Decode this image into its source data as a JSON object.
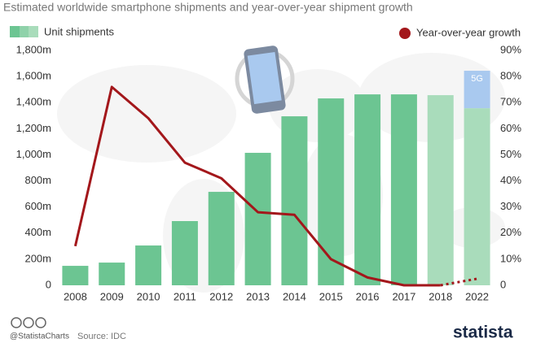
{
  "chart_data": {
    "type": "bar",
    "title": "Estimated worldwide smartphone shipments and year-over-year shipment growth",
    "categories": [
      "2008",
      "2009",
      "2010",
      "2011",
      "2012",
      "2013",
      "2014",
      "2015",
      "2016",
      "2017",
      "2018",
      "2022"
    ],
    "forecast": [
      false,
      false,
      false,
      false,
      false,
      false,
      false,
      false,
      false,
      false,
      true,
      true
    ],
    "series": [
      {
        "name": "Unit shipments",
        "color": "#6cc592",
        "forecast_color": "#a9dcbb",
        "values": [
          149,
          174,
          305,
          492,
          716,
          1015,
          1295,
          1432,
          1463,
          1463,
          1457,
          1357
        ]
      },
      {
        "name": "5G",
        "color": "#a9c9ef",
        "values": [
          null,
          null,
          null,
          null,
          null,
          null,
          null,
          null,
          null,
          null,
          null,
          287
        ]
      },
      {
        "name": "Year-over-year growth",
        "type": "line",
        "axis": "y2",
        "color": "#a3171b",
        "values": [
          15,
          76,
          64,
          47,
          41,
          28,
          27,
          10,
          3,
          0,
          0,
          2.5
        ]
      }
    ],
    "ylim": [
      0,
      1800
    ],
    "yticks": [
      0,
      {
        "value": 200,
        "label": "200m"
      },
      {
        "value": 400,
        "label": "400m"
      },
      {
        "value": 600,
        "label": "600m"
      },
      {
        "value": 800,
        "label": "800m"
      },
      {
        "value": 1000,
        "label": "1,000m"
      },
      {
        "value": 1200,
        "label": "1,200m"
      },
      {
        "value": 1400,
        "label": "1,400m"
      },
      {
        "value": 1600,
        "label": "1,600m"
      },
      {
        "value": 1800,
        "label": "1,800m"
      }
    ],
    "y2lim": [
      0,
      90
    ],
    "y2ticks": [
      0,
      {
        "value": 10,
        "label": "10%"
      },
      {
        "value": 20,
        "label": "20%"
      },
      {
        "value": 30,
        "label": "30%"
      },
      {
        "value": 40,
        "label": "40%"
      },
      {
        "value": 50,
        "label": "50%"
      },
      {
        "value": 60,
        "label": "60%"
      },
      {
        "value": 70,
        "label": "70%"
      },
      {
        "value": 80,
        "label": "80%"
      },
      {
        "value": 90,
        "label": "90%"
      }
    ],
    "credit": "@StatistaCharts",
    "source": "Source: IDC",
    "brand": "statista"
  }
}
